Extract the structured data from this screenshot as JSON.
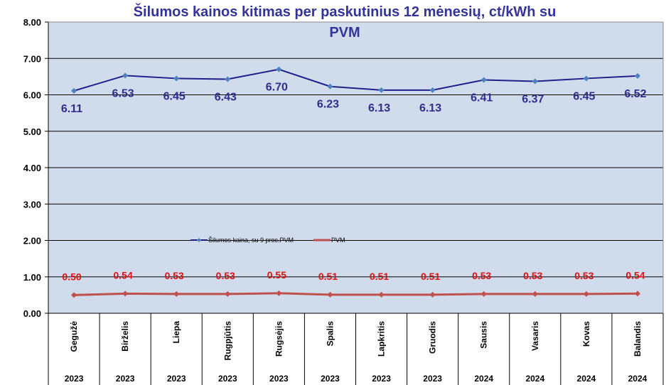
{
  "chart_data": {
    "type": "line",
    "title": "Šilumos kainos kitimas per paskutinius 12 mėnesių, ct/kWh su PVM",
    "title_lines": [
      "Šilumos kainos kitimas per paskutinius 12 mėnesių, ct/kWh su",
      "PVM"
    ],
    "categories": [
      "Gegužė",
      "Birželis",
      "Liepa",
      "Rugpjūtis",
      "Rugsėjis",
      "Spalis",
      "Lapkritis",
      "Gruodis",
      "Sausis",
      "Vasaris",
      "Kovas",
      "Balandis"
    ],
    "years": [
      "2023",
      "2023",
      "2023",
      "2023",
      "2023",
      "2023",
      "2023",
      "2023",
      "2024",
      "2024",
      "2024",
      "2024"
    ],
    "ylim": [
      0,
      8
    ],
    "yticks": [
      "0.00",
      "1.00",
      "2.00",
      "3.00",
      "4.00",
      "5.00",
      "6.00",
      "7.00",
      "8.00"
    ],
    "grid": true,
    "legend_position": "center",
    "series": [
      {
        "name": "Šilumos kaina, su 9 proc.PVM",
        "color": "#1F1F8C",
        "marker_color": "#4F81BD",
        "values": [
          6.11,
          6.53,
          6.45,
          6.43,
          6.7,
          6.23,
          6.13,
          6.13,
          6.41,
          6.37,
          6.45,
          6.52
        ],
        "labels": [
          "6.11",
          "6.53",
          "6.45",
          "6.43",
          "6.70",
          "6.23",
          "6.13",
          "6.13",
          "6.41",
          "6.37",
          "6.45",
          "6.52"
        ]
      },
      {
        "name": "PVM",
        "color": "#C0504D",
        "marker_color": "#C0504D",
        "values": [
          0.5,
          0.54,
          0.53,
          0.53,
          0.55,
          0.51,
          0.51,
          0.51,
          0.53,
          0.53,
          0.53,
          0.54
        ],
        "labels": [
          "0.50",
          "0.54",
          "0.53",
          "0.53",
          "0.55",
          "0.51",
          "0.51",
          "0.51",
          "0.53",
          "0.53",
          "0.53",
          "0.54"
        ]
      }
    ]
  }
}
